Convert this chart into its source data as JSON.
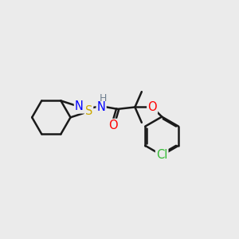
{
  "bg_color": "#ebebeb",
  "bond_color": "#1a1a1a",
  "N_color": "#0000ff",
  "S_color": "#ccaa00",
  "O_color": "#ff0000",
  "Cl_color": "#33bb33",
  "H_color": "#708090",
  "bond_width": 1.8,
  "font_size": 10.5,
  "xlim": [
    0,
    10
  ],
  "ylim": [
    0,
    10
  ]
}
